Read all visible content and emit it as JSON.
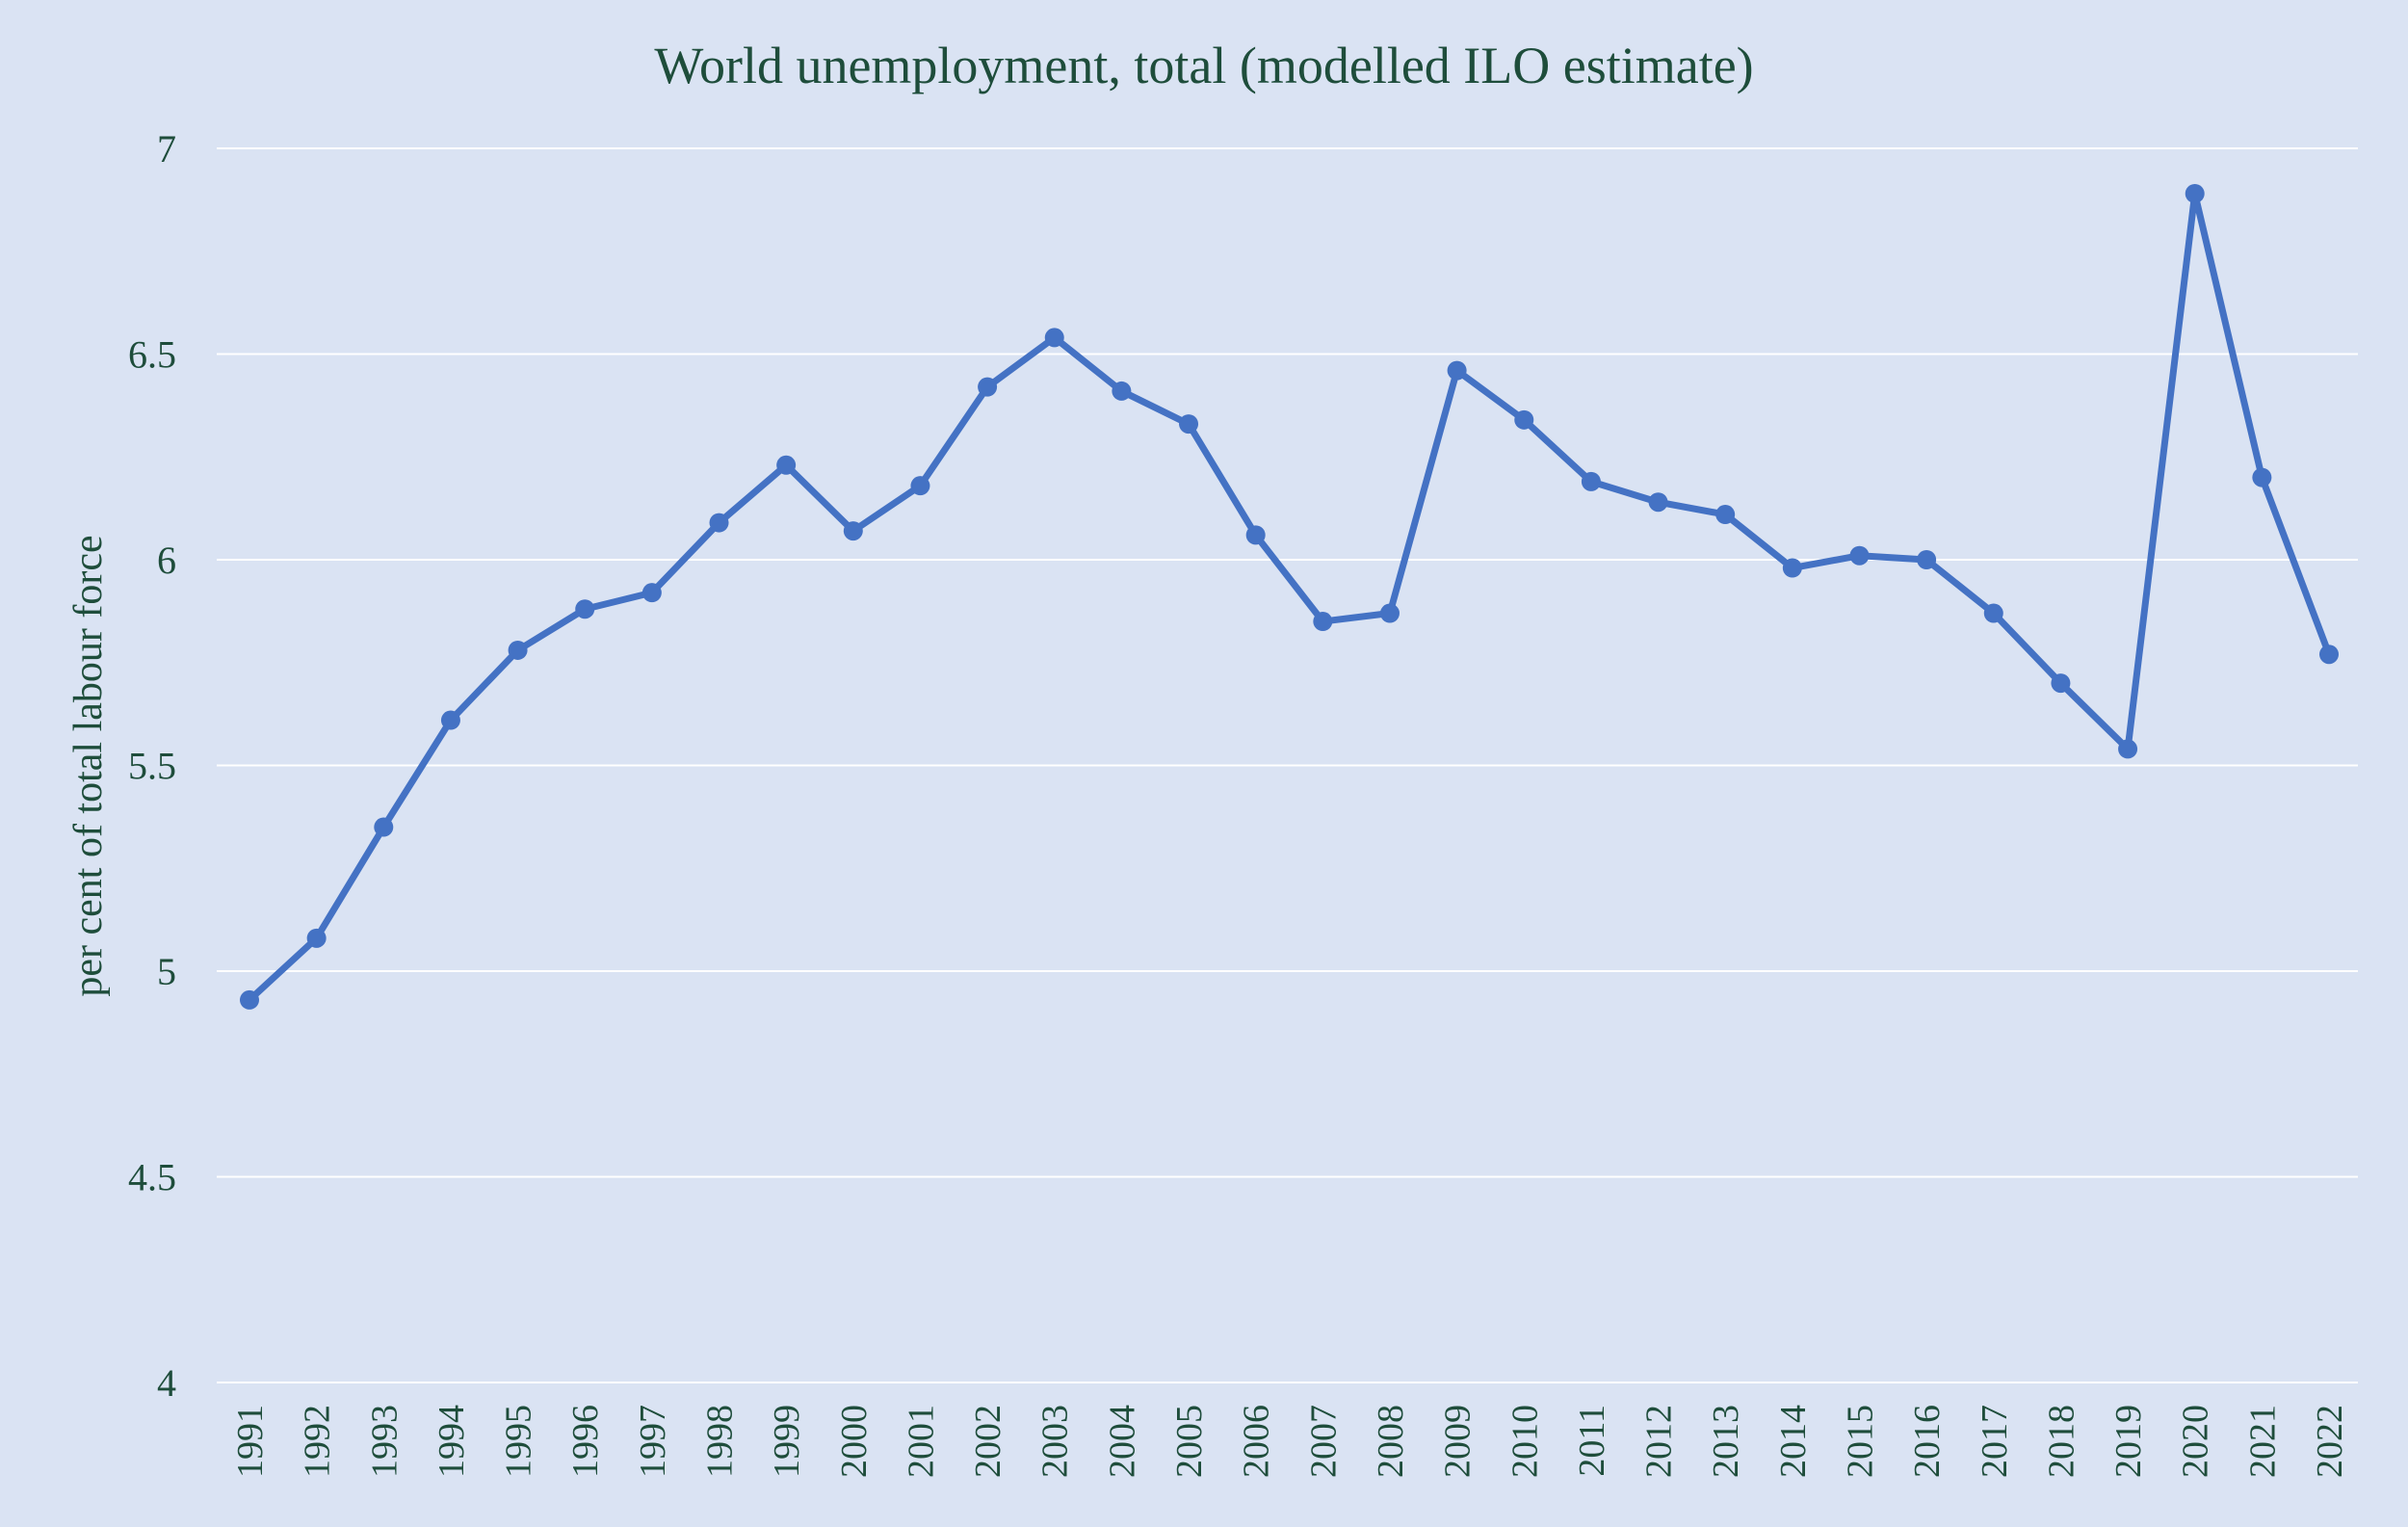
{
  "chart_data": {
    "type": "line",
    "title": "World unemployment, total (modelled ILO estimate)",
    "xlabel": "",
    "ylabel": "per cent of total labour force",
    "ylim": [
      4,
      7
    ],
    "yticks": [
      "4",
      "4.5",
      "5",
      "5.5",
      "6",
      "6.5",
      "7"
    ],
    "ytick_values": [
      4,
      4.5,
      5,
      5.5,
      6,
      6.5,
      7
    ],
    "grid": true,
    "legend": "none",
    "color": "#4472c4",
    "categories": [
      "1991",
      "1992",
      "1993",
      "1994",
      "1995",
      "1996",
      "1997",
      "1998",
      "1999",
      "2000",
      "2001",
      "2002",
      "2003",
      "2004",
      "2005",
      "2006",
      "2007",
      "2008",
      "2009",
      "2010",
      "2011",
      "2012",
      "2013",
      "2014",
      "2015",
      "2016",
      "2017",
      "2018",
      "2019",
      "2020",
      "2021",
      "2022"
    ],
    "series": [
      {
        "name": "World unemployment",
        "values": [
          4.93,
          5.08,
          5.35,
          5.61,
          5.78,
          5.88,
          5.92,
          6.09,
          6.23,
          6.07,
          6.18,
          6.42,
          6.54,
          6.41,
          6.33,
          6.06,
          5.85,
          5.87,
          6.46,
          6.34,
          6.19,
          6.14,
          6.11,
          5.98,
          6.01,
          6.0,
          5.87,
          5.7,
          5.54,
          6.89,
          6.2,
          5.77
        ]
      }
    ]
  }
}
